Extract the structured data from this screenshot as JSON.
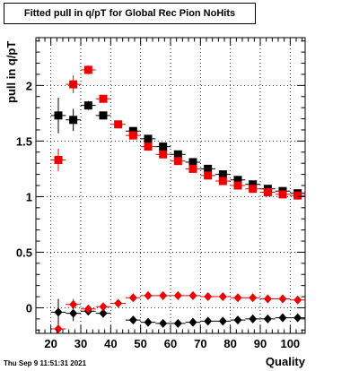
{
  "chart_data": {
    "type": "scatter",
    "title": "Fitted pull in q/pT for Global Rec Pion NoHits",
    "xlabel": "Quality",
    "ylabel": "pull in q/pT",
    "xlim": [
      15,
      105
    ],
    "ylim": [
      -0.23,
      2.43
    ],
    "xticks": [
      20,
      30,
      40,
      50,
      60,
      70,
      80,
      90,
      100
    ],
    "yticks": [
      0,
      0.5,
      1,
      1.5,
      2
    ],
    "grid": true,
    "series": [
      {
        "marker": "square",
        "color": "#000000",
        "x": [
          22.5,
          27.5,
          32.5,
          37.5,
          47.5,
          52.5,
          57.5,
          62.5,
          67.5,
          72.5,
          77.5,
          82.5,
          87.5,
          92.5,
          97.5,
          102.5
        ],
        "y": [
          1.73,
          1.69,
          1.82,
          1.73,
          1.59,
          1.52,
          1.45,
          1.38,
          1.31,
          1.25,
          1.2,
          1.15,
          1.11,
          1.07,
          1.05,
          1.03
        ],
        "err": [
          0.16,
          0.1,
          0.04,
          0.03,
          0.02,
          0.02,
          0.02,
          0.02,
          0.02,
          0.02,
          0.02,
          0.02,
          0.02,
          0.02,
          0.02,
          0.02
        ]
      },
      {
        "marker": "square",
        "color": "#ee0000",
        "x": [
          22.5,
          27.5,
          32.5,
          37.5,
          42.5,
          47.5,
          52.5,
          57.5,
          62.5,
          67.5,
          72.5,
          77.5,
          82.5,
          87.5,
          92.5,
          97.5,
          102.5
        ],
        "y": [
          1.33,
          2.01,
          2.14,
          1.88,
          1.65,
          1.55,
          1.45,
          1.38,
          1.32,
          1.25,
          1.19,
          1.14,
          1.1,
          1.07,
          1.04,
          1.02,
          1.01
        ],
        "err": [
          0.1,
          0.08,
          0.04,
          0.03,
          0.02,
          0.02,
          0.02,
          0.02,
          0.02,
          0.02,
          0.02,
          0.02,
          0.02,
          0.02,
          0.02,
          0.02,
          0.02
        ]
      },
      {
        "marker": "diamond",
        "color": "#000000",
        "x": [
          22.5,
          27.5,
          32.5,
          37.5,
          47.5,
          52.5,
          57.5,
          62.5,
          67.5,
          72.5,
          77.5,
          82.5,
          87.5,
          92.5,
          97.5,
          102.5
        ],
        "y": [
          -0.04,
          -0.05,
          -0.03,
          -0.05,
          -0.11,
          -0.13,
          -0.14,
          -0.14,
          -0.13,
          -0.12,
          -0.12,
          -0.11,
          -0.1,
          -0.1,
          -0.09,
          -0.09
        ],
        "err": [
          0.12,
          0.07,
          0.03,
          0.02,
          0.01,
          0.01,
          0.01,
          0.01,
          0.01,
          0.01,
          0.01,
          0.01,
          0.01,
          0.01,
          0.01,
          0.01
        ]
      },
      {
        "marker": "diamond",
        "color": "#ee0000",
        "x": [
          22.5,
          27.5,
          32.5,
          37.5,
          42.5,
          47.5,
          52.5,
          57.5,
          62.5,
          67.5,
          72.5,
          77.5,
          82.5,
          87.5,
          92.5,
          97.5,
          102.5
        ],
        "y": [
          -0.19,
          0.03,
          -0.01,
          0.01,
          0.04,
          0.09,
          0.11,
          0.11,
          0.11,
          0.11,
          0.1,
          0.1,
          0.09,
          0.09,
          0.08,
          0.08,
          0.07
        ],
        "err": [
          0.04,
          0.05,
          0.03,
          0.02,
          0.01,
          0.01,
          0.01,
          0.01,
          0.01,
          0.01,
          0.01,
          0.01,
          0.01,
          0.01,
          0.01,
          0.01,
          0.01
        ]
      }
    ]
  },
  "timestamp": "Thu Sep  9 11:51:31 2021"
}
